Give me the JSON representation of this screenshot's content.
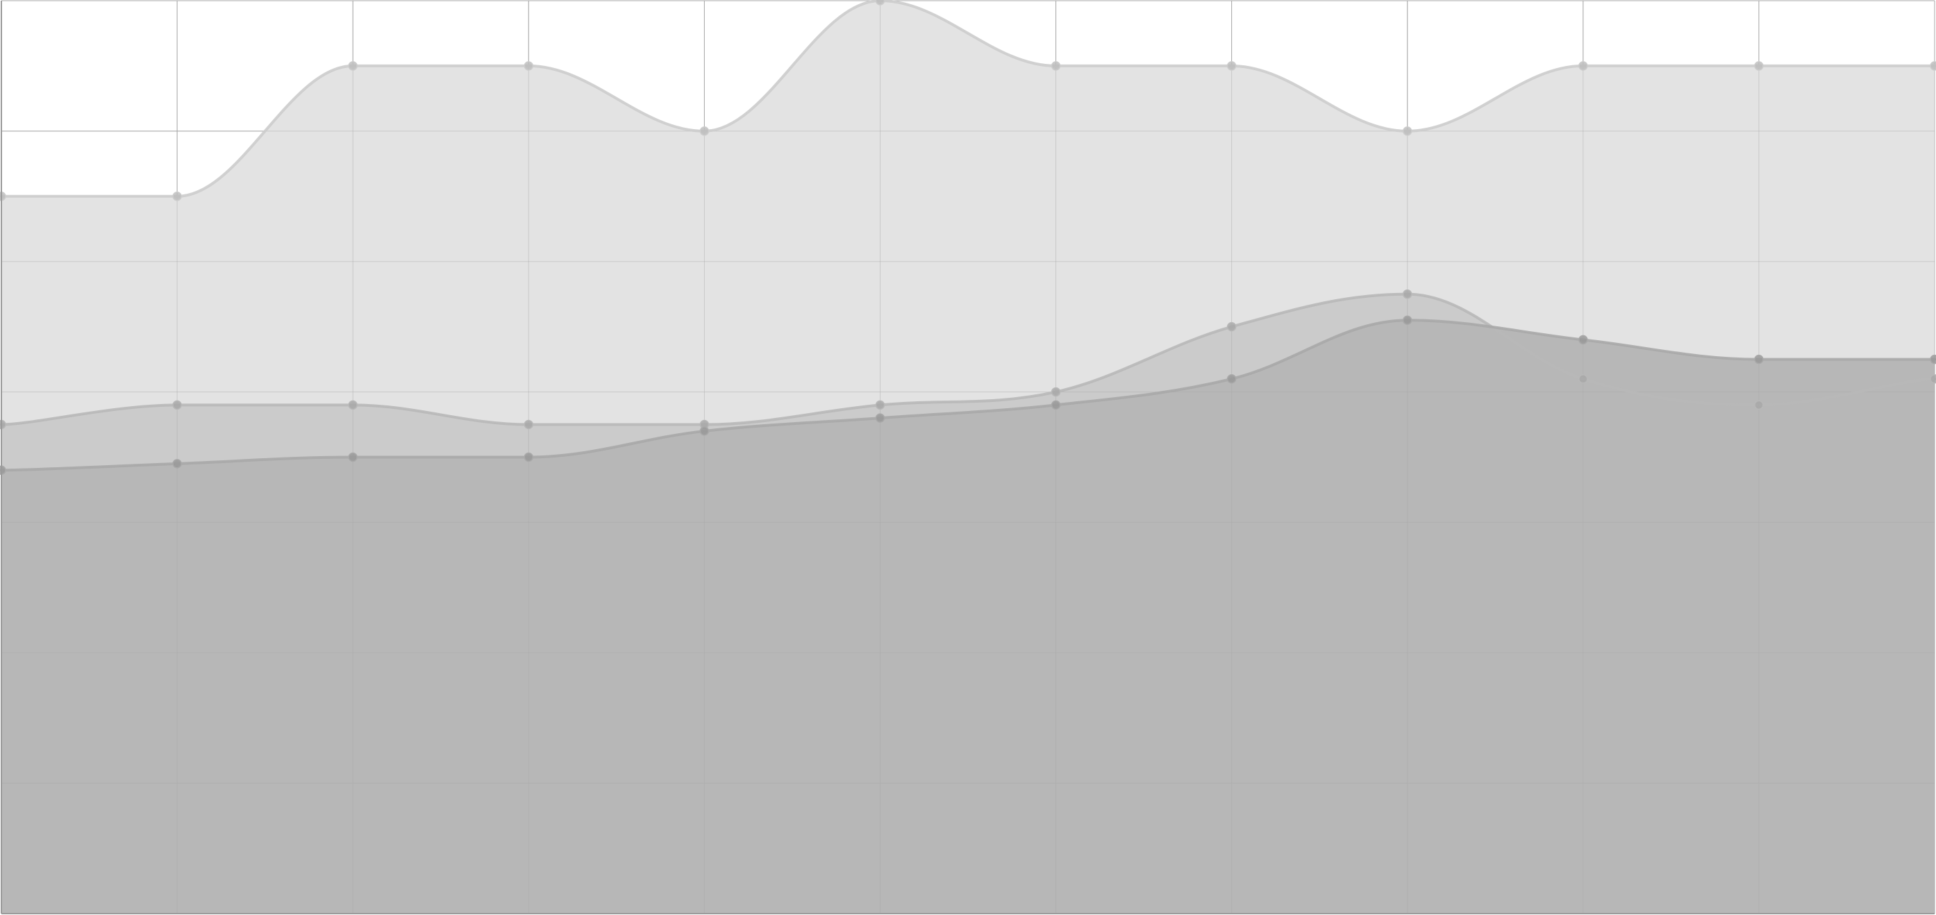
{
  "chart_data": {
    "type": "area",
    "stacked": false,
    "smooth": true,
    "x": [
      0,
      1,
      2,
      3,
      4,
      5,
      6,
      7,
      8,
      9,
      10,
      11
    ],
    "ylim": [
      0,
      14
    ],
    "grid": true,
    "series": [
      {
        "values": [
          11,
          11,
          13,
          13,
          12,
          14,
          13,
          13,
          12,
          13,
          13,
          13
        ],
        "fill": "#e3e3e3",
        "stroke": "#cccccc",
        "marker": "#bdbdbd"
      },
      {
        "values": [
          7.5,
          7.8,
          7.8,
          7.5,
          7.5,
          7.8,
          8,
          9,
          9.5,
          8.2,
          7.8,
          8.2
        ],
        "fill": "#cbcbcb",
        "stroke": "#b8b8b8",
        "marker": "#a8a8a8"
      },
      {
        "values": [
          6.8,
          6.9,
          7,
          7,
          7.4,
          7.6,
          7.8,
          8.2,
          9.1,
          8.8,
          8.5,
          8.5
        ],
        "fill": "#b7b7b7",
        "stroke": "#a9a9a9",
        "marker": "#999999"
      }
    ],
    "colors": {
      "grid": "#a8a8a8",
      "axis": "#9a9a9a",
      "background": "#ffffff"
    }
  }
}
